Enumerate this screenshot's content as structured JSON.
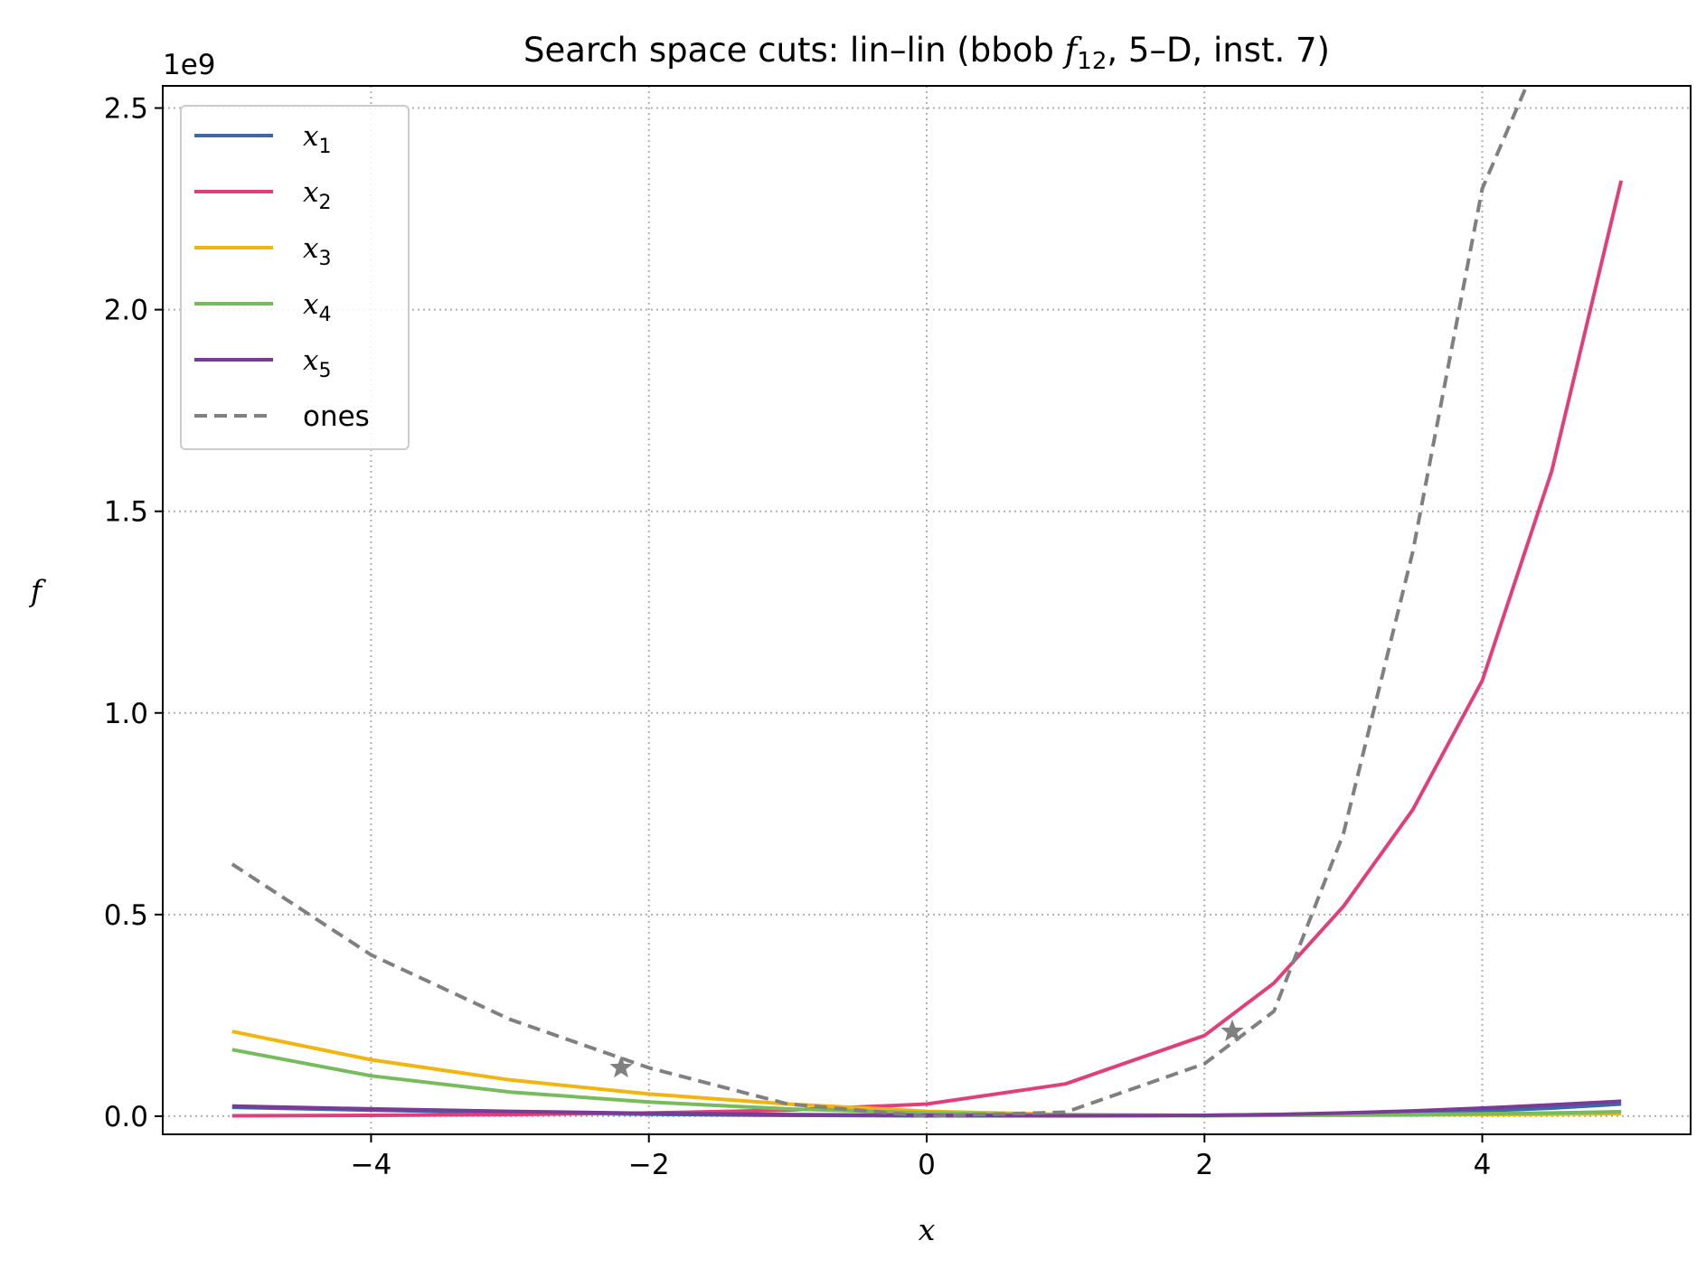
{
  "chart_data": {
    "type": "line",
    "title_prefix": "Search space cuts: lin–lin (bbob ",
    "title_fn": "f",
    "title_fn_sub": "12",
    "title_suffix": ", 5–D, inst. 7)",
    "xlabel": "x",
    "ylabel": "f",
    "y_offset_label": "1e9",
    "xlim": [
      -5.5,
      5.5
    ],
    "ylim": [
      -0.045,
      2.555
    ],
    "x_ticks": [
      -4,
      -2,
      0,
      2,
      4
    ],
    "x_tick_labels": [
      "−4",
      "−2",
      "0",
      "2",
      "4"
    ],
    "y_ticks": [
      0.0,
      0.5,
      1.0,
      1.5,
      2.0,
      2.5
    ],
    "y_tick_labels": [
      "0.0",
      "0.5",
      "1.0",
      "1.5",
      "2.0",
      "2.5"
    ],
    "grid": true,
    "legend_position": "upper-left",
    "x": [
      -5,
      -4,
      -3,
      -2,
      -1,
      0,
      1,
      2,
      2.5,
      3,
      3.5,
      4,
      4.5,
      5
    ],
    "series": [
      {
        "name": "x",
        "sub": "1",
        "color": "#3a6aa8",
        "style": "solid",
        "values": [
          0.022,
          0.015,
          0.009,
          0.005,
          0.002,
          0.001,
          0.001,
          0.002,
          0.004,
          0.006,
          0.009,
          0.013,
          0.02,
          0.03
        ]
      },
      {
        "name": "x",
        "sub": "2",
        "color": "#e0407a",
        "style": "solid",
        "values": [
          0.001,
          0.002,
          0.004,
          0.008,
          0.015,
          0.03,
          0.08,
          0.2,
          0.33,
          0.52,
          0.76,
          1.08,
          1.6,
          2.32
        ]
      },
      {
        "name": "x",
        "sub": "3",
        "color": "#f2b50f",
        "style": "solid",
        "values": [
          0.21,
          0.14,
          0.09,
          0.055,
          0.03,
          0.012,
          0.004,
          0.002,
          0.002,
          0.002,
          0.003,
          0.004,
          0.005,
          0.006
        ]
      },
      {
        "name": "x",
        "sub": "4",
        "color": "#77bc5c",
        "style": "solid",
        "values": [
          0.165,
          0.1,
          0.06,
          0.035,
          0.018,
          0.008,
          0.003,
          0.001,
          0.002,
          0.003,
          0.004,
          0.006,
          0.008,
          0.011
        ]
      },
      {
        "name": "x",
        "sub": "5",
        "color": "#7a3a96",
        "style": "solid",
        "values": [
          0.025,
          0.018,
          0.012,
          0.007,
          0.004,
          0.002,
          0.001,
          0.002,
          0.004,
          0.008,
          0.013,
          0.02,
          0.028,
          0.037
        ]
      },
      {
        "name": "ones",
        "sub": "",
        "color": "#808080",
        "style": "dashed",
        "values": [
          0.625,
          0.4,
          0.24,
          0.12,
          0.03,
          0.0,
          0.01,
          0.13,
          0.26,
          0.7,
          1.4,
          2.3,
          2.7,
          null
        ]
      }
    ],
    "markers": [
      {
        "series": "ones",
        "x": -2.2,
        "y": 0.12,
        "shape": "star"
      },
      {
        "series": "ones",
        "x": 2.2,
        "y": 0.21,
        "shape": "star"
      }
    ]
  }
}
